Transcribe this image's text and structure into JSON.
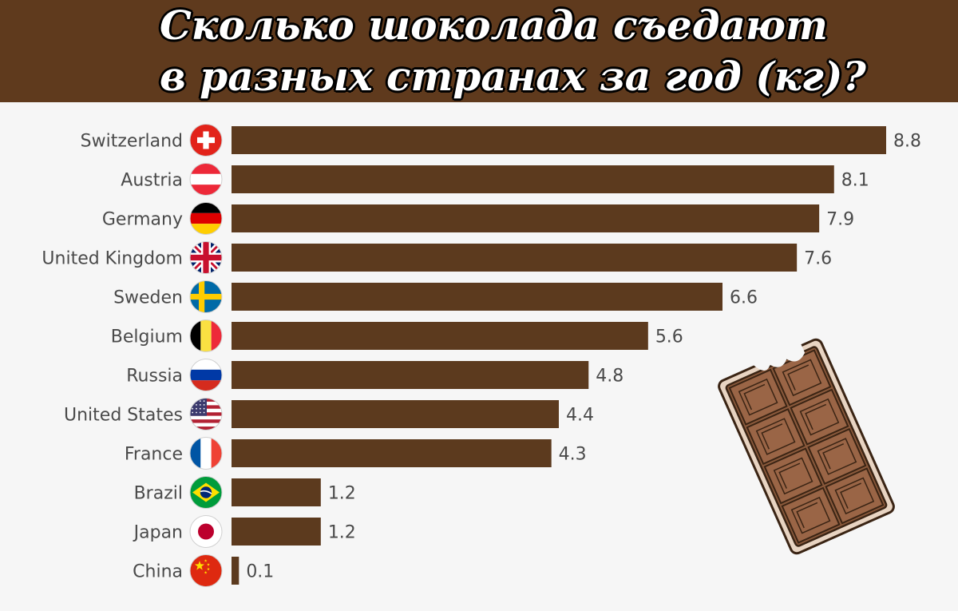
{
  "header": {
    "title_line1": "Сколько шоколада съедают",
    "title_line2": "в разных странах за год (кг)?"
  },
  "colors": {
    "header_bg": "#5f3a1d",
    "bar": "#5c3a1e",
    "label_text": "#4a4a4a"
  },
  "illustration": {
    "icon": "chocolate-bar-icon"
  },
  "chart_data": {
    "type": "bar",
    "orientation": "horizontal",
    "title": "Сколько шоколада съедают в разных странах за год (кг)?",
    "categories": [
      "Switzerland",
      "Austria",
      "Germany",
      "United Kingdom",
      "Sweden",
      "Belgium",
      "Russia",
      "United States",
      "France",
      "Brazil",
      "Japan",
      "China"
    ],
    "values": [
      8.8,
      8.1,
      7.9,
      7.6,
      6.6,
      5.6,
      4.8,
      4.4,
      4.3,
      1.2,
      1.2,
      0.1
    ],
    "value_labels": [
      "8.8",
      "8.1",
      "7.9",
      "7.6",
      "6.6",
      "5.6",
      "4.8",
      "4.4",
      "4.3",
      "1.2",
      "1.2",
      "0.1"
    ],
    "flags": [
      "switzerland-flag-icon",
      "austria-flag-icon",
      "germany-flag-icon",
      "uk-flag-icon",
      "sweden-flag-icon",
      "belgium-flag-icon",
      "russia-flag-icon",
      "usa-flag-icon",
      "france-flag-icon",
      "brazil-flag-icon",
      "japan-flag-icon",
      "china-flag-icon"
    ],
    "xlim": [
      0,
      8.8
    ],
    "xlabel": "",
    "ylabel": "",
    "grid": false,
    "legend": "none"
  }
}
